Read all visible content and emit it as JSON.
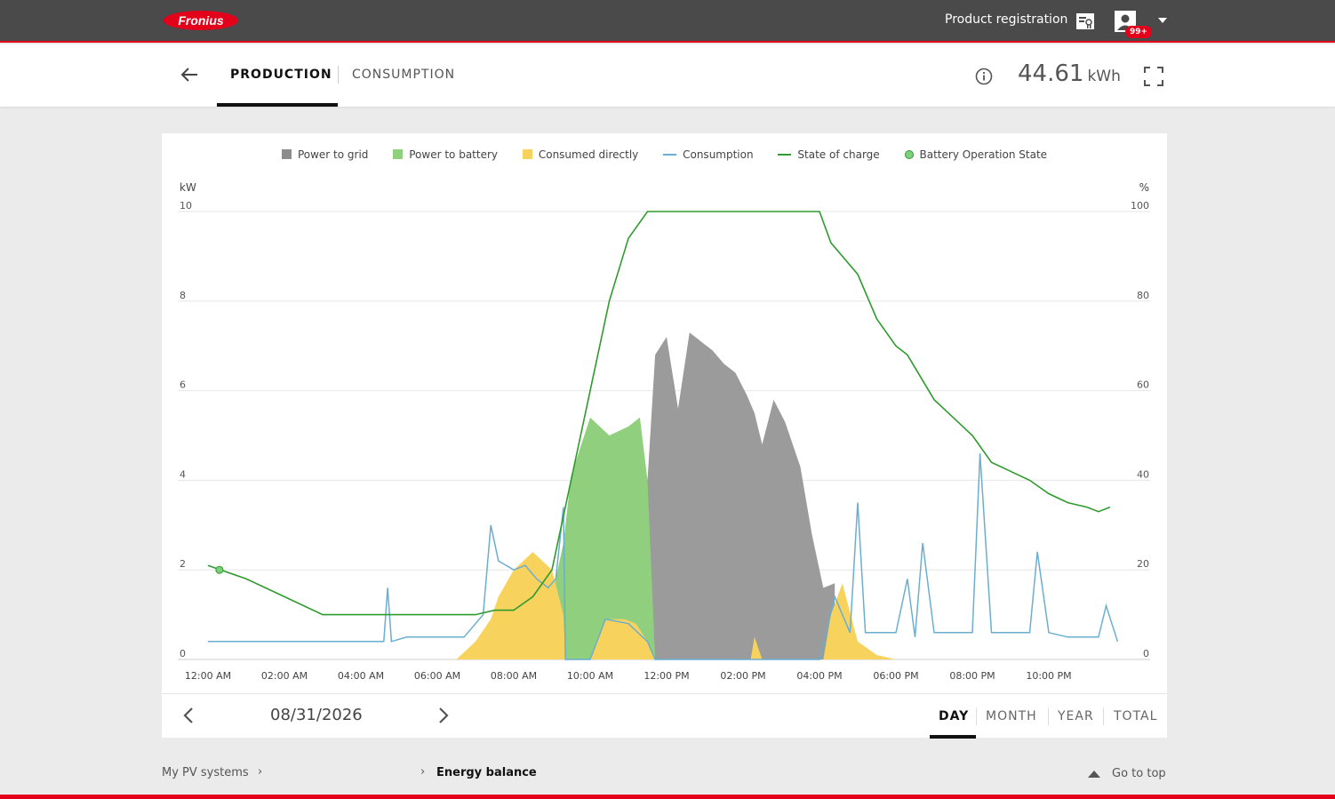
{
  "header": {
    "logo_text": "Fronius",
    "product_registration": "Product registration",
    "notification_badge": "99+",
    "brand_color": "#e2001a"
  },
  "tabs": {
    "production": "PRODUCTION",
    "consumption": "CONSUMPTION",
    "active": "production"
  },
  "summary": {
    "value": "44.61",
    "unit": "kWh"
  },
  "legend": {
    "power_to_grid": "Power to grid",
    "power_to_battery": "Power to battery",
    "consumed_directly": "Consumed directly",
    "consumption": "Consumption",
    "state_of_charge": "State of charge",
    "battery_operation_state": "Battery Operation State"
  },
  "chart_data": {
    "type": "area",
    "left_axis_unit": "kW",
    "right_axis_unit": "%",
    "ylim_left": [
      0,
      10
    ],
    "ylim_right": [
      0,
      100
    ],
    "left_ticks": [
      "0",
      "2",
      "4",
      "6",
      "8",
      "10"
    ],
    "right_ticks": [
      "0",
      "20",
      "40",
      "60",
      "80",
      "100"
    ],
    "x_ticks": [
      "12:00 AM",
      "02:00 AM",
      "04:00 AM",
      "06:00 AM",
      "08:00 AM",
      "10:00 AM",
      "12:00 PM",
      "02:00 PM",
      "04:00 PM",
      "06:00 PM",
      "08:00 PM",
      "10:00 PM"
    ],
    "grid": true,
    "legend_position": "top-center",
    "colors": {
      "power_to_grid": "#9b9b9b",
      "power_to_battery": "#8fcf7e",
      "consumed_directly": "#f7d35e",
      "consumption": "#6aaed0",
      "state_of_charge": "#2e9b2e"
    },
    "series": [
      {
        "name": "Consumed directly",
        "unit": "kW",
        "hours": [
          6.5,
          7.0,
          7.4,
          7.6,
          8.0,
          8.5,
          9.0,
          9.3,
          9.35,
          10.0,
          10.4,
          10.9,
          11.2,
          11.5,
          11.7,
          12.0,
          12.5,
          14.2,
          14.3,
          14.5,
          15.1,
          15.7,
          16.1,
          16.3,
          16.6,
          17.0,
          17.5,
          18.0
        ],
        "values": [
          0.0,
          0.4,
          0.9,
          1.4,
          2.0,
          2.4,
          2.0,
          1.0,
          0.0,
          0.0,
          0.9,
          0.9,
          0.8,
          0.4,
          0.0,
          0.0,
          0.0,
          0.0,
          0.5,
          0.0,
          0.0,
          0.0,
          0.0,
          1.0,
          1.7,
          0.4,
          0.1,
          0.0
        ]
      },
      {
        "name": "Power to battery",
        "unit": "kW",
        "hours": [
          8.0,
          8.5,
          9.0,
          9.3,
          9.5,
          10.0,
          10.5,
          11.0,
          11.3,
          11.5,
          11.7
        ],
        "values": [
          0.0,
          0.6,
          1.4,
          2.6,
          4.1,
          5.4,
          5.0,
          5.2,
          5.4,
          4.0,
          0.0
        ]
      },
      {
        "name": "Power to grid",
        "unit": "kW",
        "hours": [
          11.5,
          11.7,
          12.0,
          12.3,
          12.6,
          12.9,
          13.2,
          13.5,
          13.8,
          14.1,
          14.3,
          14.5,
          14.8,
          15.1,
          15.5,
          15.8,
          16.1,
          16.4
        ],
        "values": [
          4.0,
          6.8,
          7.2,
          5.6,
          7.3,
          7.1,
          6.9,
          6.6,
          6.4,
          5.9,
          5.5,
          4.8,
          5.8,
          5.3,
          4.3,
          2.8,
          1.6,
          1.7
        ]
      },
      {
        "name": "Consumption",
        "unit": "kW",
        "hours": [
          0,
          1,
          2,
          3,
          3.9,
          4.6,
          4.7,
          4.8,
          5.2,
          6.0,
          6.7,
          7.2,
          7.4,
          7.6,
          8.0,
          8.3,
          8.6,
          8.9,
          9.1,
          9.3,
          9.35,
          10.0,
          10.4,
          11.0,
          11.5,
          11.7,
          12.0,
          13.0,
          14.0,
          15.0,
          16.0,
          16.4,
          16.8,
          17.0,
          17.2,
          17.5,
          18.0,
          18.3,
          18.5,
          18.7,
          19.0,
          19.3,
          20.0,
          20.2,
          20.5,
          21.0,
          21.5,
          21.7,
          22.0,
          22.5,
          23.0,
          23.3,
          23.5,
          23.8
        ],
        "values": [
          0.4,
          0.4,
          0.4,
          0.4,
          0.4,
          0.4,
          1.6,
          0.4,
          0.5,
          0.5,
          0.5,
          1.0,
          3.0,
          2.2,
          2.0,
          2.1,
          1.8,
          1.6,
          1.8,
          3.4,
          0.0,
          0.0,
          0.9,
          0.8,
          0.4,
          0.0,
          0.0,
          0.0,
          0.0,
          0.0,
          0.0,
          1.4,
          0.6,
          3.5,
          0.6,
          0.6,
          0.6,
          1.8,
          0.5,
          2.6,
          0.6,
          0.6,
          0.6,
          4.6,
          0.6,
          0.6,
          0.6,
          2.4,
          0.6,
          0.5,
          0.5,
          0.5,
          1.2,
          0.4
        ]
      },
      {
        "name": "State of charge",
        "unit": "%",
        "hours": [
          0,
          1,
          2,
          3,
          4,
          5,
          6,
          7,
          7.5,
          8.0,
          8.5,
          9.0,
          9.5,
          10.0,
          10.5,
          11.0,
          11.5,
          11.7,
          12.0,
          13.0,
          14.0,
          15.0,
          16.0,
          16.3,
          16.6,
          17.0,
          17.5,
          18.0,
          18.3,
          19.0,
          19.5,
          20.0,
          20.5,
          21.0,
          21.5,
          22.0,
          22.5,
          23.0,
          23.3,
          23.6
        ],
        "values": [
          21,
          18,
          14,
          10,
          10,
          10,
          10,
          10,
          11,
          11,
          14,
          20,
          40,
          60,
          80,
          94,
          100,
          100,
          100,
          100,
          100,
          100,
          100,
          93,
          90,
          86,
          76,
          70,
          68,
          58,
          54,
          50,
          44,
          42,
          40,
          37,
          35,
          34,
          33,
          34
        ]
      }
    ],
    "battery_operation_state_points": [
      {
        "hour": 0.3,
        "value_percent": 20
      }
    ]
  },
  "date_nav": {
    "date": "08/31/2026"
  },
  "periods": {
    "day": "DAY",
    "month": "MONTH",
    "year": "YEAR",
    "total": "TOTAL",
    "active": "day"
  },
  "breadcrumb": {
    "parent": "My PV systems",
    "current": "Energy balance",
    "separator": "›"
  },
  "go_to_top": "Go to top"
}
